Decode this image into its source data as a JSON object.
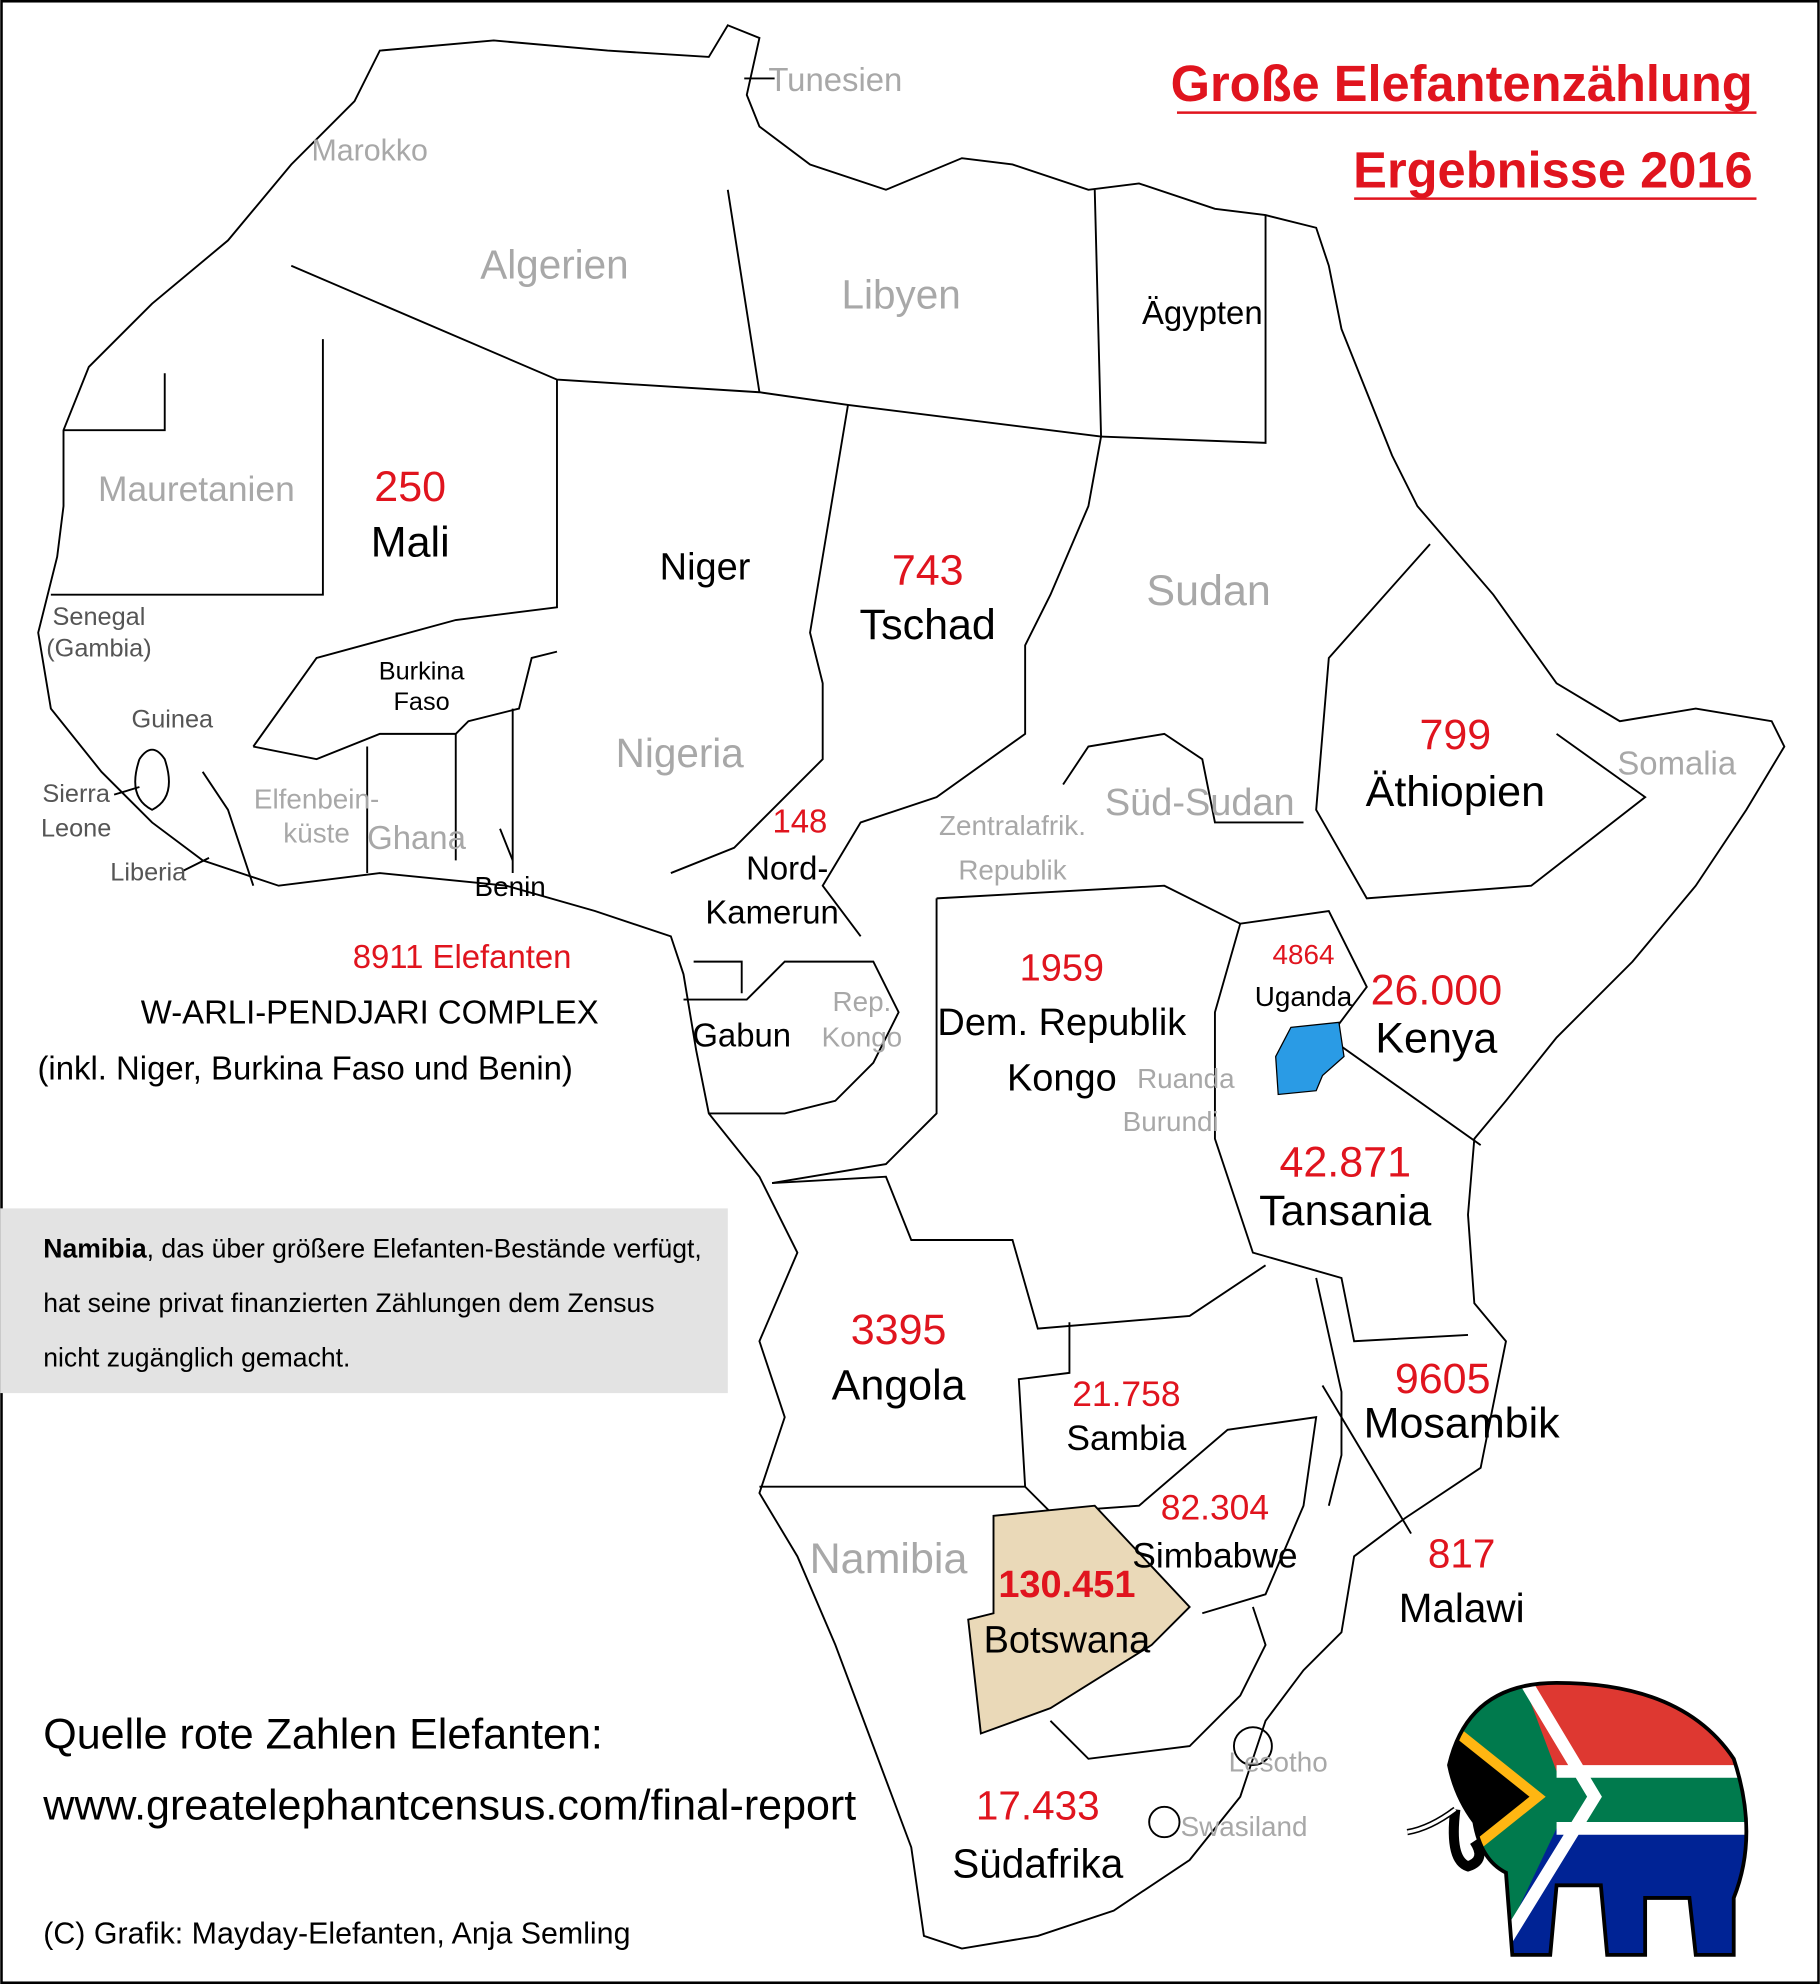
{
  "title": [
    "Große Elefantenzählung",
    "Ergebnisse 2016"
  ],
  "countries": [
    {
      "label": [
        "Tunesien"
      ]
    },
    {
      "label": [
        "Marokko"
      ]
    },
    {
      "label": [
        "Algerien"
      ]
    },
    {
      "label": [
        "Libyen"
      ]
    },
    {
      "label": [
        "Ägypten"
      ]
    },
    {
      "label": [
        "Mauretanien"
      ]
    },
    {
      "label": [
        "Mali"
      ],
      "count": "250"
    },
    {
      "label": [
        "Niger"
      ]
    },
    {
      "label": [
        "Tschad"
      ],
      "count": "743"
    },
    {
      "label": [
        "Sudan"
      ]
    },
    {
      "label": [
        "Senegal",
        "(Gambia)"
      ]
    },
    {
      "label": [
        "Burkina",
        "Faso"
      ]
    },
    {
      "label": [
        "Guinea"
      ]
    },
    {
      "label": [
        "Nigeria"
      ]
    },
    {
      "label": [
        "Äthiopien"
      ],
      "count": "799"
    },
    {
      "label": [
        "Somalia"
      ]
    },
    {
      "label": [
        "Sierra",
        "Leone"
      ]
    },
    {
      "label": [
        "Elfenbein-",
        "küste"
      ]
    },
    {
      "label": [
        "Ghana"
      ]
    },
    {
      "label": [
        "Süd-Sudan"
      ]
    },
    {
      "label": [
        "Nord-",
        "Kamerun"
      ],
      "count": "148"
    },
    {
      "label": [
        "Zentralafrik.",
        "Republik"
      ]
    },
    {
      "label": [
        "Liberia"
      ]
    },
    {
      "label": [
        "Benin"
      ]
    },
    {
      "label": [
        "Uganda"
      ],
      "count": "4864"
    },
    {
      "label": [
        "Kenya"
      ],
      "count": "26.000"
    },
    {
      "label": [
        "Gabun"
      ]
    },
    {
      "label": [
        "Rep.",
        "Kongo"
      ]
    },
    {
      "label": [
        "Dem. Republik",
        "Kongo"
      ],
      "count": "1959"
    },
    {
      "label": [
        "Ruanda",
        "Burundi"
      ]
    },
    {
      "label": [
        "Tansania"
      ],
      "count": "42.871"
    },
    {
      "label": [
        "Angola"
      ],
      "count": "3395"
    },
    {
      "label": [
        "Mosambik"
      ],
      "count": "9605"
    },
    {
      "label": [
        "Sambia"
      ],
      "count": "21.758"
    },
    {
      "label": [
        "Simbabwe"
      ],
      "count": "82.304"
    },
    {
      "label": [
        "Malawi"
      ],
      "count": "817"
    },
    {
      "label": [
        "Namibia"
      ]
    },
    {
      "label": [
        "Botswana"
      ],
      "count": "130.451"
    },
    {
      "label": [
        "Lesotho"
      ]
    },
    {
      "label": [
        "Swasiland"
      ]
    },
    {
      "label": [
        "Südafrika"
      ],
      "count": "17.433"
    }
  ],
  "complex": {
    "count": "8911 Elefanten",
    "name": "W-ARLI-PENDJARI COMPLEX",
    "note": "(inkl. Niger, Burkina Faso und Benin)"
  },
  "namibia_note": {
    "bold": "Namibia",
    "lines": [
      ", das über größere Elefanten-Bestände verfügt,",
      "hat seine privat finanzierten Zählungen dem Zensus",
      "nicht zugänglich gemacht."
    ]
  },
  "source": [
    "Quelle rote Zahlen Elefanten:",
    "www.greatelephantcensus.com/final-report"
  ],
  "credit": "(C) Grafik: Mayday-Elefanten, Anja Semling"
}
